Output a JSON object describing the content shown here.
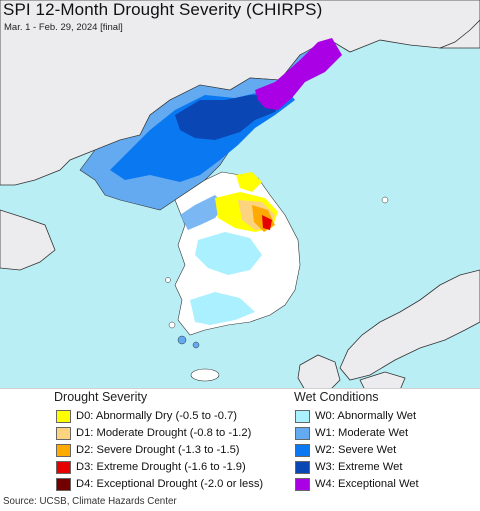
{
  "map": {
    "title": "SPI 12-Month Drought Severity (CHIRPS)",
    "subtitle": "Mar. 1 - Feb. 29, 2024 [final]",
    "ocean_color": "#b9eef5",
    "land_color": "#ececef"
  },
  "legend": {
    "drought_title": "Drought Severity",
    "wet_title": "Wet Conditions",
    "drought_items": [
      {
        "label": "D0: Abnormally Dry (-0.5 to -0.7)",
        "color": "#ffff00"
      },
      {
        "label": "D1: Moderate Drought (-0.8 to -1.2)",
        "color": "#fcd37f"
      },
      {
        "label": "D2: Severe Drought (-1.3 to -1.5)",
        "color": "#ffaa00"
      },
      {
        "label": "D3: Extreme Drought (-1.6 to -1.9)",
        "color": "#e60000"
      },
      {
        "label": "D4: Exceptional Drought (-2.0 or less)",
        "color": "#730000"
      }
    ],
    "wet_items": [
      {
        "label": "W0: Abnormally Wet",
        "color": "#aaf0ff"
      },
      {
        "label": "W1: Moderate Wet",
        "color": "#64aaf0"
      },
      {
        "label": "W2: Severe Wet",
        "color": "#0a78f0"
      },
      {
        "label": "W3: Extreme Wet",
        "color": "#0a46b4"
      },
      {
        "label": "W4: Exceptional Wet",
        "color": "#aa00e6"
      }
    ]
  },
  "footer": {
    "source": "Source: UCSB, Climate Hazards Center"
  }
}
